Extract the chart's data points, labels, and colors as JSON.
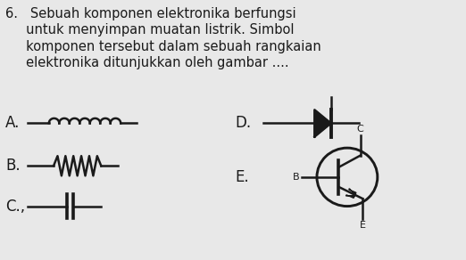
{
  "bg_color": "#e8e8e8",
  "text_color": "#1a1a1a",
  "font_size": 10.5,
  "label_fontsize": 12,
  "lw": 1.8,
  "question_text_line1": "6.   Sebuah komponen elektronika berfungsi",
  "question_text_line2": "     untuk menyimpan muatan listrik. Simbol",
  "question_text_line3": "     komponen tersebut dalam sebuah rangkaian",
  "question_text_line4": "     elektronika ditunjukkan oleh gambar ....",
  "A_label": "A.",
  "B_label": "B.",
  "C_label": "C.,",
  "D_label": "D.",
  "E_label": "E.",
  "B_pin": "B",
  "C_pin": "C",
  "E_pin": "E"
}
